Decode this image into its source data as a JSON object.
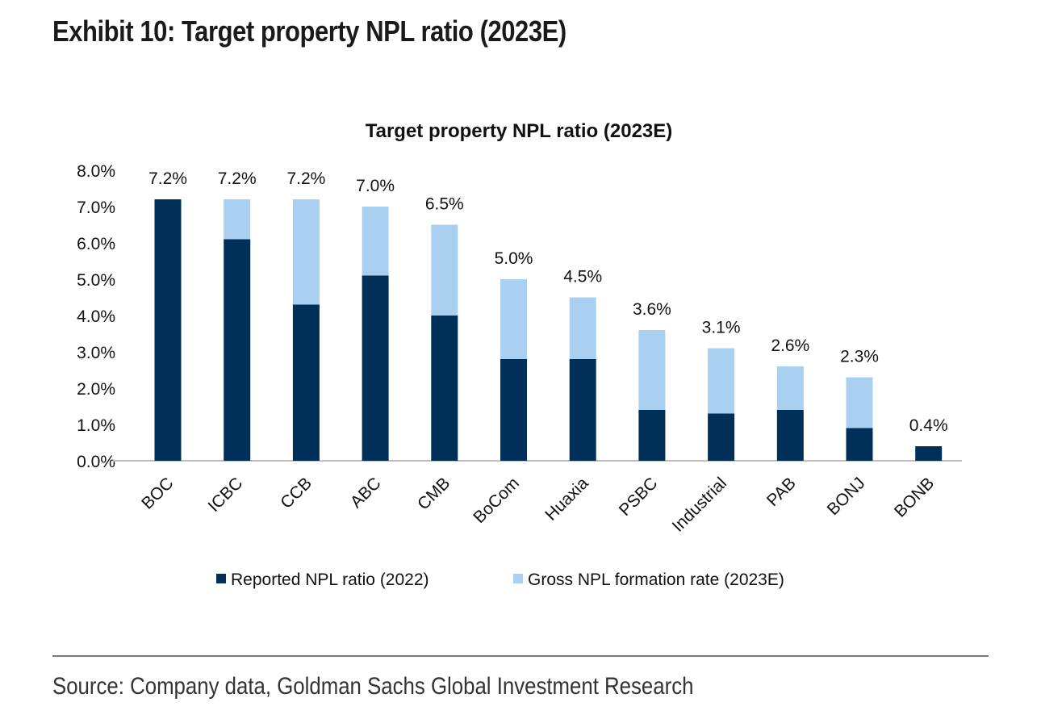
{
  "exhibit_title": "Exhibit 10: Target property NPL ratio (2023E)",
  "source": "Source: Company data, Goldman Sachs Global Investment Research",
  "colors": {
    "reported": "#003057",
    "formation": "#a9d0f1",
    "axis": "#bfbfbf"
  },
  "chart_data": {
    "type": "bar",
    "stacked": true,
    "title": "Target property NPL ratio (2023E)",
    "xlabel": "",
    "ylabel": "",
    "ylim": [
      0,
      8
    ],
    "y_ticks": [
      "0.0%",
      "1.0%",
      "2.0%",
      "3.0%",
      "4.0%",
      "5.0%",
      "6.0%",
      "7.0%",
      "8.0%"
    ],
    "categories": [
      "BOC",
      "ICBC",
      "CCB",
      "ABC",
      "CMB",
      "BoCom",
      "Huaxia",
      "PSBC",
      "Industrial",
      "PAB",
      "BONJ",
      "BONB"
    ],
    "series": [
      {
        "name": "Reported NPL ratio (2022)",
        "values": [
          7.2,
          6.1,
          4.3,
          5.1,
          4.0,
          2.8,
          2.8,
          1.4,
          1.3,
          1.4,
          0.9,
          0.4
        ]
      },
      {
        "name": "Gross NPL formation rate (2023E)",
        "values": [
          0.0,
          1.1,
          2.9,
          1.9,
          2.5,
          2.2,
          1.7,
          2.2,
          1.8,
          1.2,
          1.4,
          0.0
        ]
      }
    ],
    "data_labels": [
      "7.2%",
      "7.2%",
      "7.2%",
      "7.0%",
      "6.5%",
      "5.0%",
      "4.5%",
      "3.6%",
      "3.1%",
      "2.6%",
      "2.3%",
      "0.4%"
    ],
    "grid": false,
    "legend": "bottom"
  }
}
